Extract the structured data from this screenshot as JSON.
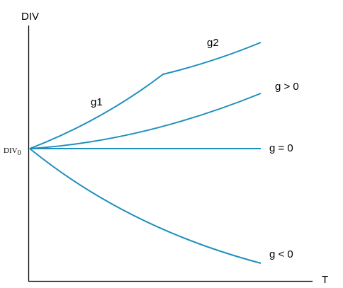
{
  "axes": {
    "y_label": "DIV",
    "x_label": "T",
    "origin_label": {
      "text": "DIV",
      "subscript": "0"
    }
  },
  "curves": [
    {
      "label": "g1"
    },
    {
      "label": "g2"
    },
    {
      "label": "g > 0"
    },
    {
      "label": "g = 0"
    },
    {
      "label": "g < 0"
    }
  ]
}
